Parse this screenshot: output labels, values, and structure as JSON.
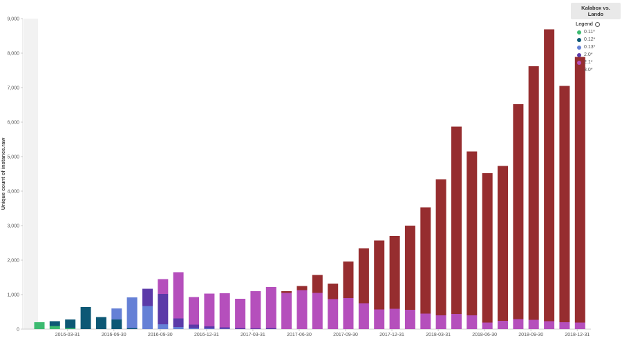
{
  "chart_data": {
    "type": "bar",
    "stacked": true,
    "title": "Kalabox vs. Lando",
    "ylabel": "Unique count of instance.raw",
    "xlabel": "",
    "ylim": [
      0,
      9000
    ],
    "yticks": [
      "0",
      "1,000",
      "2,000",
      "3,000",
      "4,000",
      "5,000",
      "6,000",
      "7,000",
      "8,000",
      "9,000"
    ],
    "ytick_values": [
      0,
      1000,
      2000,
      3000,
      4000,
      5000,
      6000,
      7000,
      8000,
      9000
    ],
    "xtick_labels": [
      {
        "label": "2016-03-31",
        "after_bar": 2
      },
      {
        "label": "2016-06-30",
        "after_bar": 5
      },
      {
        "label": "2016-09-30",
        "after_bar": 8
      },
      {
        "label": "2016-12-31",
        "after_bar": 11
      },
      {
        "label": "2017-03-31",
        "after_bar": 14
      },
      {
        "label": "2017-06-30",
        "after_bar": 17
      },
      {
        "label": "2017-09-30",
        "after_bar": 20
      },
      {
        "label": "2017-12-31",
        "after_bar": 23
      },
      {
        "label": "2018-03-31",
        "after_bar": 26
      },
      {
        "label": "2018-06-30",
        "after_bar": 29
      },
      {
        "label": "2018-09-30",
        "after_bar": 32
      },
      {
        "label": "2018-12-31",
        "after_bar": 35
      }
    ],
    "grid": false,
    "legend_position": "top-right",
    "legend_title": "Legend",
    "series": [
      {
        "name": "0.11*",
        "color": "#3cba70",
        "values": [
          200,
          90,
          30,
          0,
          0,
          0,
          0,
          0,
          0,
          0,
          0,
          0,
          0,
          0,
          0,
          0,
          0,
          0,
          0,
          0,
          0,
          0,
          0,
          0,
          0,
          0,
          0,
          0,
          0,
          0,
          0,
          0,
          0,
          0,
          0,
          0,
          0
        ]
      },
      {
        "name": "0.12*",
        "color": "#0d5875",
        "values": [
          0,
          140,
          250,
          640,
          350,
          280,
          30,
          0,
          0,
          0,
          0,
          0,
          0,
          0,
          0,
          0,
          0,
          0,
          0,
          0,
          0,
          0,
          0,
          0,
          0,
          0,
          0,
          0,
          0,
          0,
          0,
          0,
          0,
          0,
          0,
          0,
          0
        ]
      },
      {
        "name": "0.13*",
        "color": "#6580d6",
        "values": [
          0,
          0,
          0,
          0,
          0,
          320,
          890,
          670,
          140,
          60,
          30,
          20,
          10,
          0,
          0,
          0,
          0,
          0,
          0,
          0,
          0,
          0,
          0,
          0,
          0,
          0,
          0,
          0,
          0,
          0,
          0,
          0,
          0,
          0,
          0,
          0,
          0
        ]
      },
      {
        "name": "2.0*",
        "color": "#5b3aa8",
        "values": [
          0,
          0,
          0,
          0,
          0,
          0,
          0,
          500,
          880,
          250,
          100,
          60,
          40,
          30,
          20,
          30,
          0,
          0,
          0,
          0,
          0,
          0,
          0,
          0,
          0,
          0,
          0,
          0,
          0,
          0,
          0,
          0,
          0,
          0,
          0,
          0,
          0
        ]
      },
      {
        "name": "2.1*",
        "color": "#b54fbc",
        "values": [
          0,
          0,
          0,
          0,
          0,
          0,
          0,
          0,
          430,
          1340,
          800,
          950,
          990,
          850,
          1080,
          1190,
          1050,
          1130,
          1050,
          870,
          900,
          750,
          570,
          590,
          560,
          450,
          400,
          440,
          400,
          190,
          240,
          290,
          270,
          230,
          200,
          190,
          0
        ]
      },
      {
        "name": "3.0*",
        "color": "#962d2f",
        "values": [
          0,
          0,
          0,
          0,
          0,
          0,
          0,
          0,
          0,
          0,
          0,
          0,
          0,
          0,
          0,
          0,
          50,
          120,
          520,
          450,
          1060,
          1590,
          2000,
          2110,
          2440,
          3080,
          3940,
          5430,
          4750,
          4330,
          4490,
          6230,
          7350,
          8460,
          6850,
          7700,
          0
        ]
      }
    ]
  }
}
